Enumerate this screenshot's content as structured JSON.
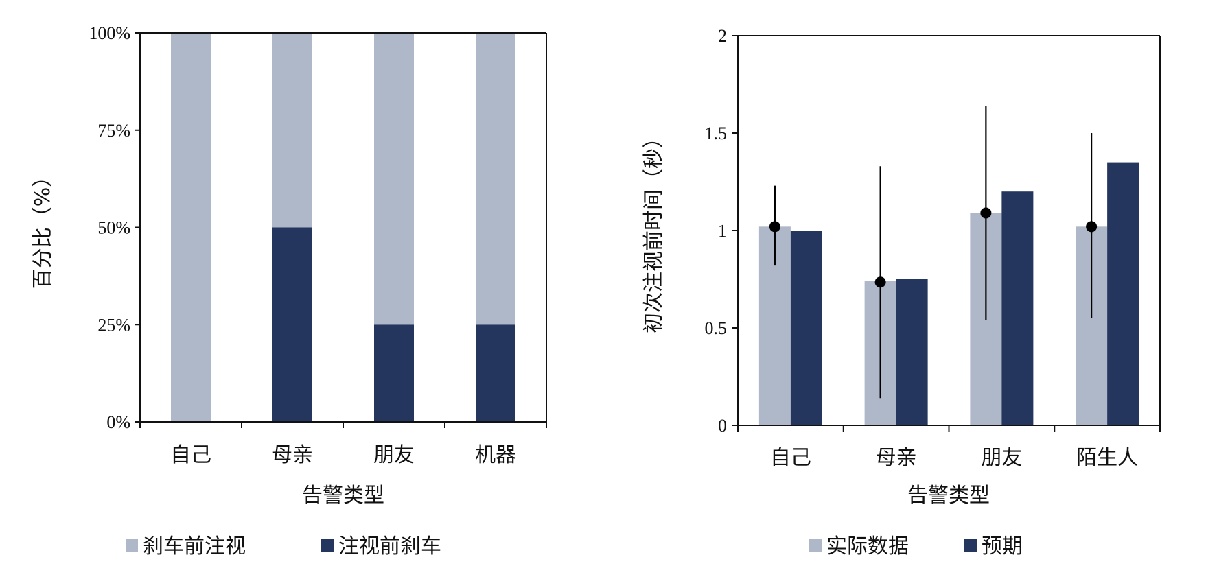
{
  "colors": {
    "light": "#afb8c9",
    "dark": "#24365e",
    "axis": "#111111",
    "marker": "#000000"
  },
  "chart_data": [
    {
      "type": "bar",
      "stacked": true,
      "categories": [
        "自己",
        "母亲",
        "朋友",
        "机器"
      ],
      "xlabel": "告警类型",
      "ylabel": "百分比（%）",
      "ylim": [
        0,
        100
      ],
      "yticks": [
        "0%",
        "25%",
        "50%",
        "75%",
        "100%"
      ],
      "series": [
        {
          "name": "注视前刹车",
          "values": [
            0,
            50,
            25,
            25
          ]
        },
        {
          "name": "刹车前注视",
          "values": [
            100,
            50,
            75,
            75
          ]
        }
      ],
      "legend": [
        "刹车前注视",
        "注视前刹车"
      ],
      "legend_position": "bottom"
    },
    {
      "type": "bar",
      "categories": [
        "自己",
        "母亲",
        "朋友",
        "陌生人"
      ],
      "xlabel": "告警类型",
      "ylabel": "初次注视前时间（秒）",
      "ylim": [
        0,
        2
      ],
      "yticks": [
        "0",
        "0.5",
        "1",
        "1.5",
        "2"
      ],
      "series": [
        {
          "name": "实际数据",
          "values": [
            1.02,
            0.74,
            1.09,
            1.02
          ],
          "points": [
            1.02,
            0.735,
            1.09,
            1.02
          ],
          "error_low": [
            0.82,
            0.14,
            0.54,
            0.55
          ],
          "error_high": [
            1.23,
            1.33,
            1.64,
            1.5
          ]
        },
        {
          "name": "预期",
          "values": [
            1.0,
            0.75,
            1.2,
            1.35
          ]
        }
      ],
      "legend_position": "bottom"
    }
  ]
}
